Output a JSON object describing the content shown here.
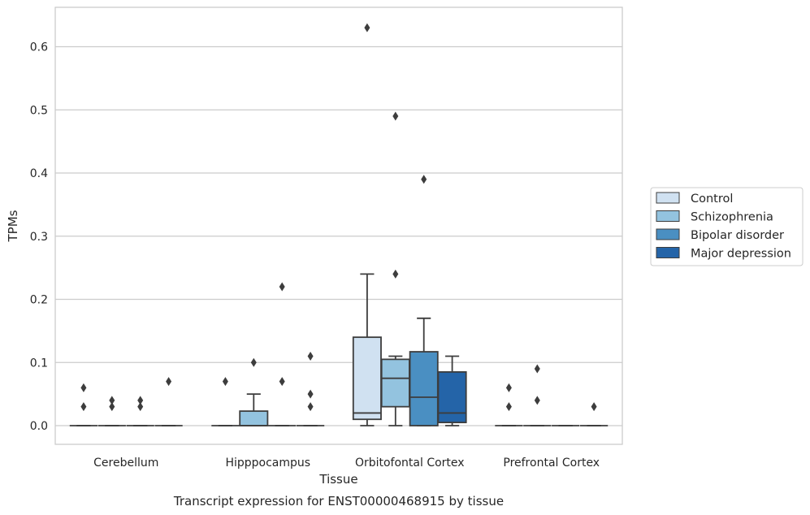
{
  "chart_data": {
    "type": "box",
    "caption": "Transcript expression for ENST00000468915 by tissue",
    "xlabel": "Tissue",
    "ylabel": "TPMs",
    "ylim": [
      -0.03,
      0.66
    ],
    "yticks": [
      "0.0",
      "0.1",
      "0.2",
      "0.3",
      "0.4",
      "0.5",
      "0.6"
    ],
    "ytick_values": [
      0,
      0.1,
      0.2,
      0.3,
      0.4,
      0.5,
      0.6
    ],
    "grid": "horizontal",
    "legend_position": "right",
    "categories": [
      "Cerebellum",
      "Hipppocampus",
      "Orbitofontal Cortex",
      "Prefrontal Cortex"
    ],
    "series": [
      {
        "name": "Control",
        "color": "#d0e1f1",
        "boxes": [
          {
            "min": 0,
            "q1": 0,
            "median": 0,
            "q3": 0,
            "max": 0,
            "outliers": [
              0.03,
              0.06
            ]
          },
          {
            "min": 0,
            "q1": 0,
            "median": 0,
            "q3": 0,
            "max": 0,
            "outliers": [
              0.07
            ]
          },
          {
            "min": 0,
            "q1": 0.01,
            "median": 0.02,
            "q3": 0.14,
            "max": 0.24,
            "outliers": [
              0.63
            ]
          },
          {
            "min": 0,
            "q1": 0,
            "median": 0,
            "q3": 0,
            "max": 0,
            "outliers": [
              0.03,
              0.06
            ]
          }
        ]
      },
      {
        "name": "Schizophrenia",
        "color": "#93c3df",
        "boxes": [
          {
            "min": 0,
            "q1": 0,
            "median": 0,
            "q3": 0,
            "max": 0,
            "outliers": [
              0.03,
              0.04
            ]
          },
          {
            "min": 0,
            "q1": 0,
            "median": 0,
            "q3": 0.023,
            "max": 0.05,
            "outliers": [
              0.1
            ]
          },
          {
            "min": 0,
            "q1": 0.03,
            "median": 0.075,
            "q3": 0.105,
            "max": 0.11,
            "outliers": [
              0.24,
              0.49
            ]
          },
          {
            "min": 0,
            "q1": 0,
            "median": 0,
            "q3": 0,
            "max": 0,
            "outliers": [
              0.04,
              0.09
            ]
          }
        ]
      },
      {
        "name": "Bipolar disorder",
        "color": "#4a8fc2",
        "boxes": [
          {
            "min": 0,
            "q1": 0,
            "median": 0,
            "q3": 0,
            "max": 0,
            "outliers": [
              0.03,
              0.04
            ]
          },
          {
            "min": 0,
            "q1": 0,
            "median": 0,
            "q3": 0,
            "max": 0,
            "outliers": [
              0.07,
              0.22
            ]
          },
          {
            "min": 0,
            "q1": 0,
            "median": 0.045,
            "q3": 0.117,
            "max": 0.17,
            "outliers": [
              0.39
            ]
          },
          {
            "min": 0,
            "q1": 0,
            "median": 0,
            "q3": 0,
            "max": 0,
            "outliers": []
          }
        ]
      },
      {
        "name": "Major depression",
        "color": "#2464a8",
        "boxes": [
          {
            "min": 0,
            "q1": 0,
            "median": 0,
            "q3": 0,
            "max": 0,
            "outliers": [
              0.07
            ]
          },
          {
            "min": 0,
            "q1": 0,
            "median": 0,
            "q3": 0,
            "max": 0,
            "outliers": [
              0.03,
              0.05,
              0.11
            ]
          },
          {
            "min": 0,
            "q1": 0.005,
            "median": 0.02,
            "q3": 0.085,
            "max": 0.11,
            "outliers": []
          },
          {
            "min": 0,
            "q1": 0,
            "median": 0,
            "q3": 0,
            "max": 0,
            "outliers": [
              0.03
            ]
          }
        ]
      }
    ]
  }
}
